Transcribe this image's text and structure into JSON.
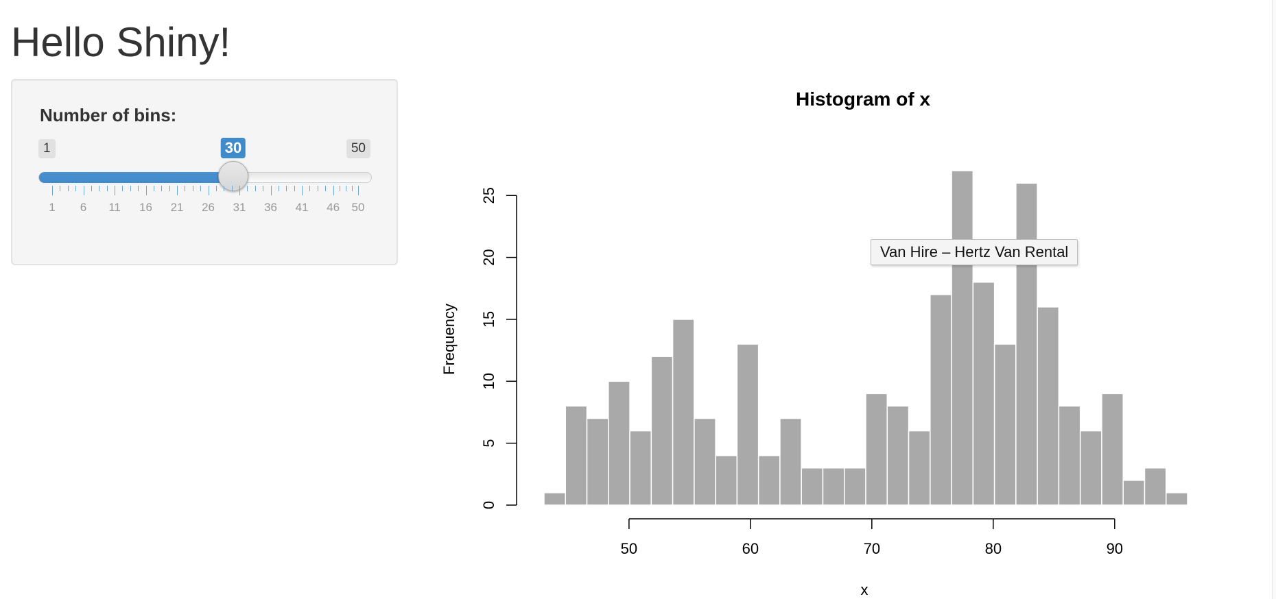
{
  "page": {
    "title": "Hello Shiny!"
  },
  "sidebar": {
    "slider": {
      "label": "Number of bins:",
      "min": 1,
      "max": 50,
      "min_label": "1",
      "max_label": "50",
      "value": 30,
      "value_label": "30",
      "tick_labels": [
        "1",
        "6",
        "11",
        "16",
        "21",
        "26",
        "31",
        "36",
        "41",
        "46",
        "50"
      ],
      "accent_color": "#428bca"
    }
  },
  "tooltip": {
    "text": "Van Hire – Hertz Van Rental"
  },
  "chart_data": {
    "type": "bar",
    "title": "Histogram of x",
    "xlabel": "x",
    "ylabel": "Frequency",
    "bin_start": 43,
    "bin_width": 1.7667,
    "values": [
      1,
      8,
      7,
      10,
      6,
      12,
      15,
      7,
      4,
      13,
      4,
      7,
      3,
      3,
      3,
      9,
      8,
      6,
      17,
      27,
      18,
      13,
      26,
      16,
      8,
      6,
      9,
      2,
      3,
      1
    ],
    "x_ticks": [
      "50",
      "60",
      "70",
      "80",
      "90"
    ],
    "x_tick_values": [
      50,
      60,
      70,
      80,
      90
    ],
    "y_ticks": [
      "0",
      "5",
      "10",
      "15",
      "20",
      "25"
    ],
    "y_tick_values": [
      0,
      5,
      10,
      15,
      20,
      25
    ],
    "ylim": [
      0,
      27
    ],
    "xlim": [
      43,
      96
    ],
    "bar_color": "#a9a9a9",
    "grid": false
  }
}
